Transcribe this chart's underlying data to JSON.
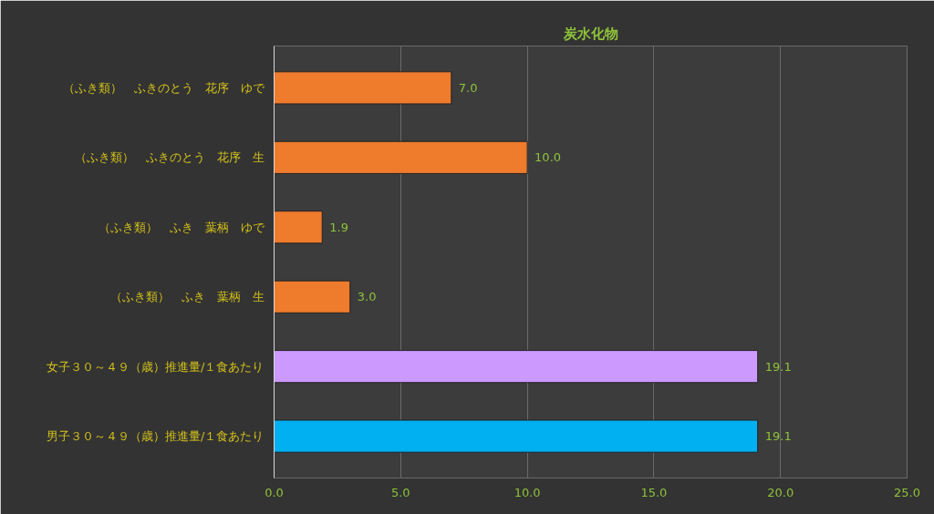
{
  "chart_data": {
    "type": "bar",
    "orientation": "horizontal",
    "title": "炭水化物",
    "categories": [
      "（ふき類）　ふきのとう　花序　ゆで",
      "（ふき類）　ふきのとう　花序　生",
      "（ふき類）　ふき　葉柄　ゆで",
      "（ふき類）　ふき　葉柄　生",
      "女子３０～４９（歳）推進量/１食あたり",
      "男子３０～４９（歳）推進量/１食あたり"
    ],
    "values": [
      7.0,
      10.0,
      1.9,
      3.0,
      19.1,
      19.1
    ],
    "colors": [
      "#ef7b2d",
      "#ef7b2d",
      "#ef7b2d",
      "#ef7b2d",
      "#cc99ff",
      "#00b0f0"
    ],
    "value_labels": [
      "7.0",
      "10.0",
      "1.9",
      "3.0",
      "19.1",
      "19.1"
    ],
    "xlim": [
      0,
      25
    ],
    "xticks": [
      {
        "value": 0,
        "label": "0.0"
      },
      {
        "value": 5,
        "label": "5.0"
      },
      {
        "value": 10,
        "label": "10.0"
      },
      {
        "value": 15,
        "label": "15.0"
      },
      {
        "value": 20,
        "label": "20.0"
      },
      {
        "value": 25,
        "label": "25.0"
      }
    ],
    "grid": "x"
  }
}
